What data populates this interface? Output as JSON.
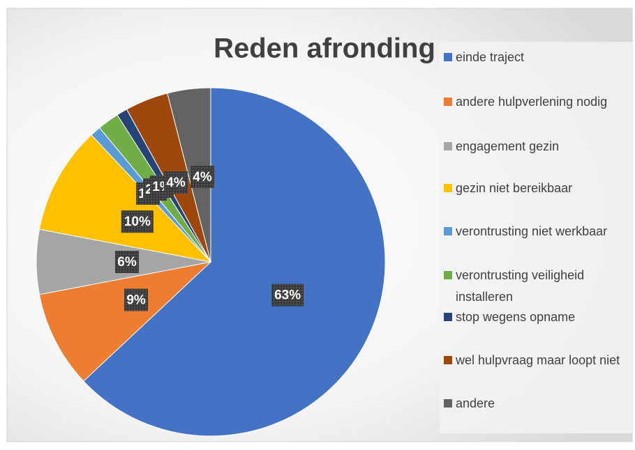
{
  "chart_data": {
    "type": "pie",
    "title": "Reden afronding",
    "categories": [
      "einde traject",
      "andere hulpverlening nodig",
      "engagement gezin",
      "gezin niet bereikbaar",
      "verontrusting niet werkbaar",
      "verontrusting veiligheid installeren",
      "stop wegens opname",
      "wel hulpvraag maar loopt niet",
      "andere"
    ],
    "values": [
      63,
      9,
      6,
      10,
      1,
      2,
      1,
      4,
      4
    ],
    "value_labels": [
      "63%",
      "9%",
      "6%",
      "10%",
      "1%",
      "2%",
      "1%",
      "4%",
      "4%"
    ],
    "colors": [
      "#4472c4",
      "#ed7d31",
      "#a5a5a5",
      "#ffc000",
      "#5b9bd5",
      "#70ad47",
      "#264478",
      "#9e480e",
      "#636363"
    ],
    "legend": "right"
  }
}
